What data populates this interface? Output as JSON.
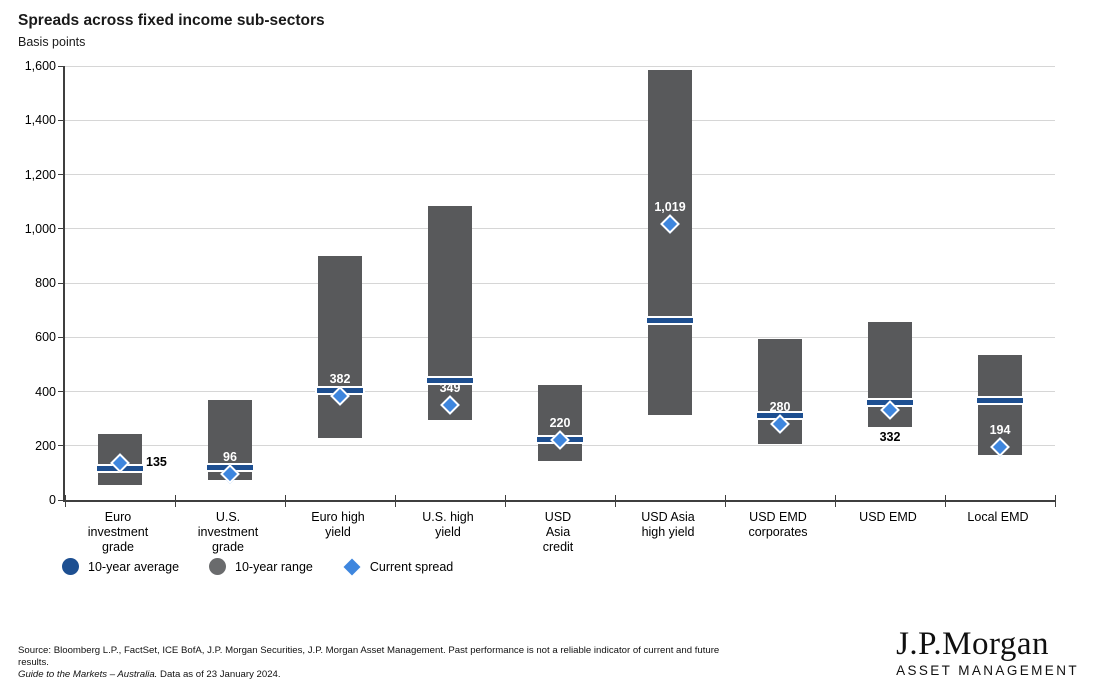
{
  "header": {
    "title": "Spreads across fixed income sub-sectors",
    "subtitle": "Basis points"
  },
  "chart_data": {
    "type": "bar",
    "subtype": "floating-range-bar-with-markers",
    "title": "Spreads across fixed income sub-sectors",
    "ylabel": "Basis points",
    "ylim": [
      0,
      1600
    ],
    "ytick_interval": 200,
    "ytick_labels": [
      "0",
      "200",
      "400",
      "600",
      "800",
      "1,000",
      "1,200",
      "1,400",
      "1,600"
    ],
    "grid": "horizontal",
    "categories": [
      "Euro investment grade",
      "U.S. investment grade",
      "Euro high yield",
      "U.S. high yield",
      "USD Asia credit",
      "USD Asia high yield",
      "USD EMD corporates",
      "USD EMD",
      "Local EMD"
    ],
    "category_label_lines": [
      [
        "Euro",
        "investment",
        "grade"
      ],
      [
        "U.S.",
        "investment",
        "grade"
      ],
      [
        "Euro high",
        "yield"
      ],
      [
        "U.S. high",
        "yield"
      ],
      [
        "USD",
        "Asia",
        "credit"
      ],
      [
        "USD Asia",
        "high yield"
      ],
      [
        "USD EMD",
        "corporates"
      ],
      [
        "USD EMD"
      ],
      [
        "Local EMD"
      ]
    ],
    "series": [
      {
        "name": "10-year range",
        "role": "range",
        "low": [
          55,
          75,
          230,
          295,
          145,
          315,
          205,
          270,
          165
        ],
        "high": [
          245,
          370,
          900,
          1085,
          425,
          1585,
          595,
          655,
          535
        ],
        "color": "#58595B"
      },
      {
        "name": "10-year average",
        "role": "average-band",
        "values": [
          115,
          120,
          405,
          440,
          222,
          660,
          310,
          360,
          365
        ],
        "color": "#1D4F91"
      },
      {
        "name": "Current spread",
        "role": "diamond-marker",
        "values": [
          135,
          96,
          382,
          349,
          220,
          1019,
          280,
          332,
          194
        ],
        "labels": [
          "135",
          "96",
          "382",
          "349",
          "220",
          "1,019",
          "280",
          "332",
          "194"
        ],
        "label_placement": [
          "right",
          "above",
          "above",
          "above",
          "above",
          "above",
          "above",
          "below-bar",
          "above"
        ],
        "label_color": [
          "black",
          "white",
          "white",
          "white",
          "white",
          "white",
          "white",
          "black",
          "white"
        ],
        "color": "#3E86DE"
      }
    ],
    "legend_position": "bottom-left"
  },
  "legend": {
    "items": [
      {
        "label": "10-year average",
        "marker": "circle",
        "color": "#1D4F91"
      },
      {
        "label": "10-year range",
        "marker": "circle",
        "color": "#6A6B6D"
      },
      {
        "label": "Current spread",
        "marker": "diamond",
        "color": "#3E86DE"
      }
    ]
  },
  "footer": {
    "line1": "Source: Bloomberg L.P., FactSet, ICE BofA, J.P. Morgan Securities, J.P. Morgan Asset Management. Past performance is not a reliable indicator of current and future",
    "line2": "results.",
    "line3_italic": "Guide to the Markets – Australia.",
    "line3_rest": " Data as of 23 January 2024."
  },
  "logo": {
    "brand": "J.P.Morgan",
    "division": "ASSET MANAGEMENT"
  }
}
